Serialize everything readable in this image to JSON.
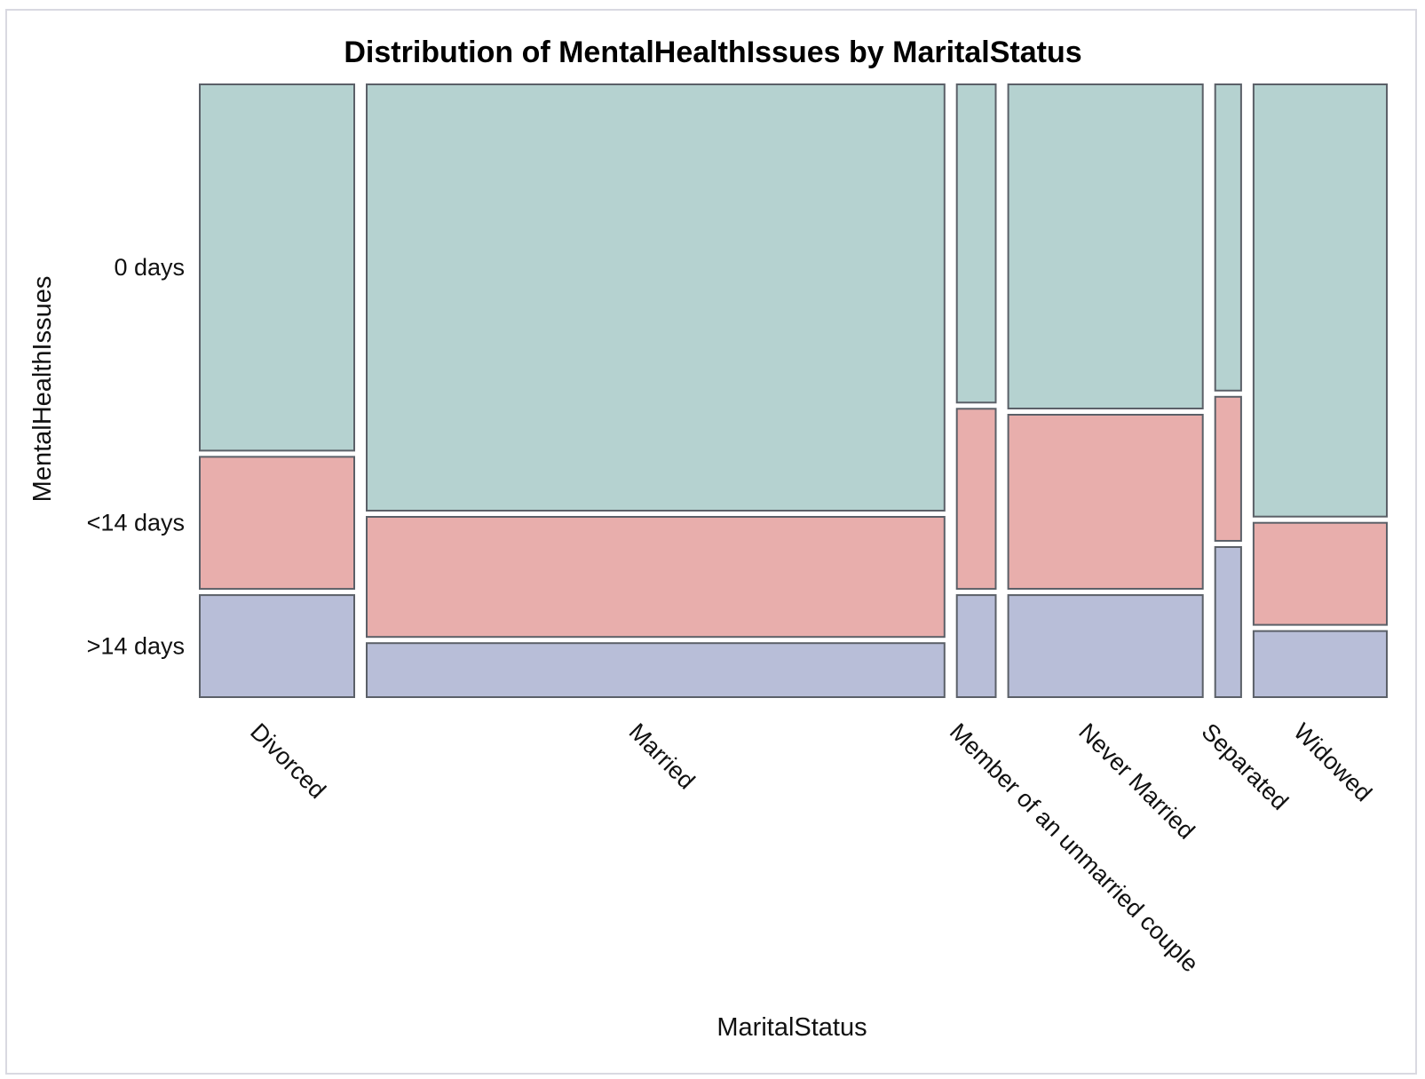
{
  "chart_data": {
    "type": "mosaic",
    "title": "Distribution of MentalHealthIssues by MaritalStatus",
    "xlabel": "MaritalStatus",
    "ylabel": "MentalHealthIssues",
    "categories": [
      "Divorced",
      "Married",
      "Member of an unmarried couple",
      "Never Married",
      "Separated",
      "Widowed"
    ],
    "category_share": [
      0.131,
      0.49,
      0.033,
      0.165,
      0.022,
      0.113
    ],
    "levels": [
      "0 days",
      "<14 days",
      ">14 days"
    ],
    "level_colors": [
      "#b5d2d0",
      "#e8aeac",
      "#b8bed8"
    ],
    "proportions": [
      [
        0.61,
        0.22,
        0.17
      ],
      [
        0.71,
        0.2,
        0.09
      ],
      [
        0.53,
        0.3,
        0.17
      ],
      [
        0.54,
        0.29,
        0.17
      ],
      [
        0.51,
        0.24,
        0.25
      ],
      [
        0.72,
        0.17,
        0.11
      ]
    ],
    "grid": false,
    "legend": "none"
  }
}
